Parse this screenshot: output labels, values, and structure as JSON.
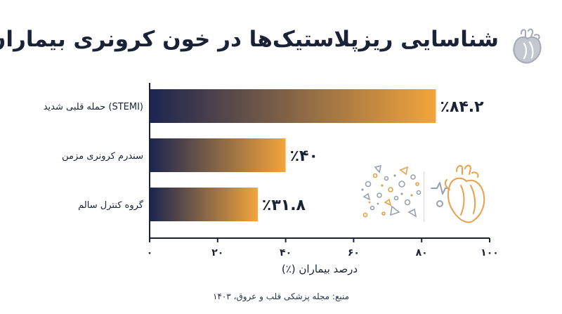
{
  "title": "شناسایی ریزپلاستیک‌ها در خون کرونری بیماران",
  "source": "منبع: مجله پزشکی قلب و عروق، ۱۴۰۳",
  "colors": {
    "bar_start": "#1b2550",
    "bar_end": "#f2a53c",
    "text": "#1b2238",
    "axis": "#1b2238",
    "icon_gray": "#a9adb8",
    "decor_orange": "#e8a04a"
  },
  "icons": [
    "heart-icon",
    "microplastic-particles-icon",
    "anatomical-heart-icon"
  ],
  "chart_data": {
    "type": "bar",
    "orientation": "horizontal",
    "categories": [
      "حمله قلبی شدید (STEMI)",
      "سندرم کرونری مزمن",
      "گروه کنترل سالم"
    ],
    "values": [
      84.2,
      40,
      31.8
    ],
    "value_labels": [
      "٪۸۴.۲",
      "٪۴۰",
      "٪۳۱.۸"
    ],
    "xlabel": "درصد بیماران (٪)",
    "xlim": [
      0,
      100
    ],
    "xticks": [
      0,
      20,
      40,
      60,
      80,
      100
    ],
    "xtick_labels": [
      "۰",
      "۲۰",
      "۴۰",
      "۶۰",
      "۸۰",
      "۱۰۰"
    ],
    "grid": false,
    "legend": "none"
  }
}
